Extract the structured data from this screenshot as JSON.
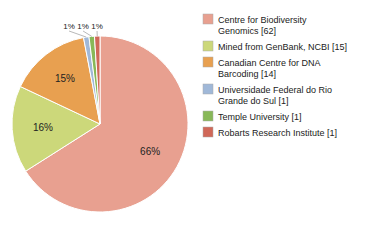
{
  "chart_data": {
    "type": "pie",
    "categories": [
      "Centre for Biodiversity\nGenomics [62]",
      "Mined from GenBank, NCBI [15]",
      "Canadian Centre for DNA\nBarcoding [14]",
      "Universidade Federal do Rio\nGrande do Sul [1]",
      "Temple University [1]",
      "Robarts Research Institute [1]"
    ],
    "values": [
      66,
      16,
      15,
      1,
      1,
      1
    ],
    "value_labels": [
      "66%",
      "16%",
      "15%",
      "1%",
      "1%",
      "1%"
    ],
    "colors": [
      "#e8a090",
      "#ccd87a",
      "#e8a050",
      "#a0b8d8",
      "#88b858",
      "#d06858"
    ],
    "data_labels": true,
    "legend": "right"
  }
}
